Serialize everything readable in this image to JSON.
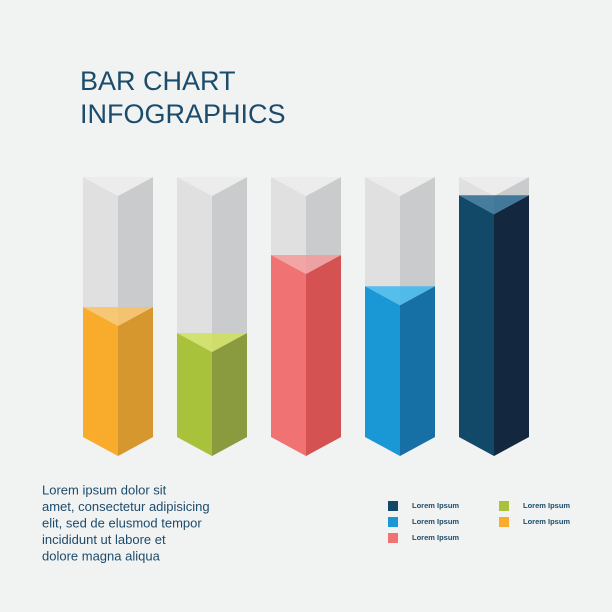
{
  "chart_data": {
    "type": "bar3d",
    "title": [
      "BAR CHART",
      "INFOGRAPHICS"
    ],
    "categories": [
      "Lorem Ipsum",
      "Lorem Ipsum",
      "Lorem Ipsum",
      "Lorem Ipsum",
      "Lorem Ipsum"
    ],
    "values": [
      50,
      40,
      70,
      58,
      93
    ],
    "colors": [
      [
        "#f9ac2c",
        "#d7972f",
        "#fbc25f"
      ],
      [
        "#a9c23b",
        "#8a9b3f",
        "#cfe05a"
      ],
      [
        "#f07272",
        "#d45252",
        "#f49a9a"
      ],
      [
        "#1a97d5",
        "#1670a6",
        "#3cb7ec"
      ],
      [
        "#124969",
        "#13283f",
        "#2a6a8f"
      ]
    ],
    "ylim": [
      0,
      100
    ],
    "text": [
      "Lorem ipsum dolor sit",
      "amet, consectetur adipisicing",
      "elit, sed de elusmod tempor",
      "incididunt ut labore et",
      "dolore magna aliqua"
    ]
  }
}
